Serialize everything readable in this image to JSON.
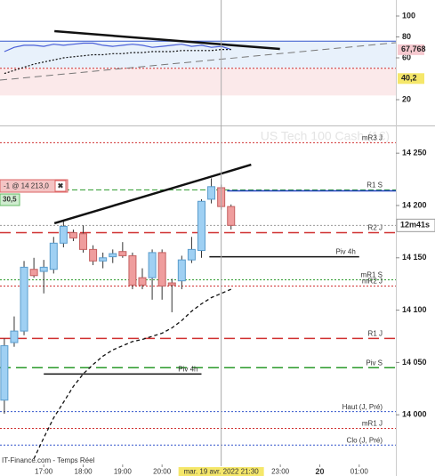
{
  "chart_data": [
    {
      "type": "oscillator",
      "ylim": [
        -3.8,
        115.3
      ],
      "yticks": [
        100,
        80,
        60,
        20
      ],
      "bands": [
        {
          "from": 50,
          "to": 76,
          "color": "#e8f1fb"
        },
        {
          "from": 24,
          "to": 50,
          "color": "#fbe9ea"
        }
      ],
      "levels": [
        {
          "value": 76,
          "color": "#3355cc",
          "style": "solid"
        },
        {
          "value": 50,
          "color": "#d03030",
          "style": "dotted"
        }
      ],
      "markers": [
        {
          "value": 67.768,
          "label": "67,768",
          "color": "#f6c9cf"
        },
        {
          "value": 40.2,
          "label": "40,2",
          "color": "#f5e76a"
        }
      ],
      "x": [
        16,
        16.25,
        16.5,
        16.75,
        17,
        17.25,
        17.5,
        17.75,
        18,
        18.25,
        18.5,
        18.75,
        19,
        19.25,
        19.5,
        19.75,
        20,
        20.25,
        20.5,
        20.75,
        21,
        21.25,
        21.5,
        21.75
      ],
      "series": [
        {
          "name": "osc",
          "color": "#4a5fd8",
          "style": "solid",
          "values": [
            66,
            70,
            72,
            72,
            71,
            73,
            72,
            73,
            74,
            74,
            72,
            71,
            72,
            73,
            72,
            70,
            71,
            72,
            73,
            71,
            72,
            70,
            71,
            68
          ]
        },
        {
          "name": "signal",
          "color": "#111111",
          "style": "dotted",
          "values": [
            45,
            48,
            51,
            54,
            56,
            58,
            60,
            61,
            62,
            63,
            63,
            64,
            64,
            65,
            65,
            66,
            66,
            66,
            67,
            67,
            67,
            67,
            68,
            68
          ]
        }
      ],
      "trendlines": [
        {
          "x": [
            17.27,
            22.99
          ],
          "y": [
            85.5,
            68.5
          ],
          "color": "#111111",
          "width": 2.5,
          "dash": ""
        },
        {
          "x": [
            15.89,
            25.93
          ],
          "y": [
            38.7,
            74.5
          ],
          "color": "#777777",
          "width": 1,
          "dash": "8 5"
        }
      ]
    },
    {
      "type": "candlestick",
      "title": "US Tech 100 Cash (1€)",
      "source": "IT-Finance.com - Temps Réel",
      "xlim": [
        15.89,
        25.93
      ],
      "ylim": [
        13941.5,
        14274.8
      ],
      "yticks": [
        {
          "value": 14250,
          "label": "14 250"
        },
        {
          "value": 14200,
          "label": "14 200"
        },
        {
          "value": 14150,
          "label": "14 150"
        },
        {
          "value": 14100,
          "label": "14 100"
        },
        {
          "value": 14050,
          "label": "14 050"
        },
        {
          "value": 14000,
          "label": "14 000"
        }
      ],
      "xticks": [
        {
          "value": 17,
          "label": "17:00"
        },
        {
          "value": 18,
          "label": "18:00"
        },
        {
          "value": 19,
          "label": "19:00"
        },
        {
          "value": 20,
          "label": "20:00"
        },
        {
          "value": 23,
          "label": "23:00"
        },
        {
          "value": 24,
          "label": "20"
        },
        {
          "value": 25,
          "label": "01:00"
        }
      ],
      "crosshair": {
        "value": 21.5,
        "label": "mar. 19 avr. 2022 21:30"
      },
      "last": {
        "value": 14181,
        "label": "12m41s"
      },
      "order": {
        "label": "-1 @ 14 213,0",
        "pnl": "30,5"
      },
      "x": [
        16,
        16.25,
        16.5,
        16.75,
        17,
        17.25,
        17.5,
        17.75,
        18,
        18.25,
        18.5,
        18.75,
        19,
        19.25,
        19.5,
        19.75,
        20,
        20.25,
        20.5,
        20.75,
        21,
        21.25,
        21.5,
        21.75
      ],
      "open": [
        14014,
        14069,
        14080,
        14139,
        14137,
        14139,
        14164,
        14174,
        14173,
        14158,
        14147,
        14151,
        14156,
        14152,
        14131,
        14131,
        14155,
        14126,
        14128,
        14148,
        14157,
        14206,
        14217,
        14199
      ],
      "close": [
        14066,
        14080,
        14141,
        14133,
        14141,
        14164,
        14180,
        14169,
        14158,
        14147,
        14150,
        14154,
        14152,
        14124,
        14124,
        14155,
        14123,
        14124,
        14148,
        14158,
        14204,
        14218,
        14199,
        14181
      ],
      "high": [
        14073,
        14094,
        14147,
        14150,
        14148,
        14170,
        14185,
        14177,
        14181,
        14162,
        14155,
        14158,
        14165,
        14155,
        14140,
        14158,
        14158,
        14130,
        14152,
        14170,
        14206,
        14226,
        14220,
        14201
      ],
      "low": [
        14001,
        14065,
        14076,
        14131,
        14116,
        14135,
        14160,
        14166,
        14155,
        14143,
        14140,
        14145,
        14150,
        14120,
        14120,
        14110,
        14110,
        14098,
        14120,
        14145,
        14150,
        14202,
        14196,
        14177
      ],
      "up_color": "#9fd0f3",
      "down_color": "#ef9d9d",
      "ma": {
        "color": "#111111",
        "values": [
          null,
          null,
          null,
          13958,
          13978,
          13997,
          14012,
          14027,
          14039,
          14048,
          14056,
          14062,
          14066,
          14070,
          14072,
          14075,
          14078,
          14083,
          14090,
          14099,
          14106,
          14112,
          14116,
          14120
        ]
      },
      "levels": [
        {
          "label": "mR3 J",
          "value": 14260,
          "color": "#d03030",
          "style": "dotted"
        },
        {
          "label": "R1 S",
          "value": 14215,
          "color": "#2a9a2a",
          "style": "dashed"
        },
        {
          "value": 14214,
          "color": "#1f3fbf",
          "style": "solid",
          "from": 21.65
        },
        {
          "label": "R2 J",
          "value": 14174,
          "color": "#d03030",
          "style": "longdash"
        },
        {
          "label": "Piv 4h",
          "value": 14151,
          "color": "#111111",
          "style": "solid",
          "from": 21.2,
          "to": 25.0
        },
        {
          "label": "mR1 S",
          "value": 14129,
          "color": "#2a9a2a",
          "style": "dotted"
        },
        {
          "label": "mR2 J",
          "value": 14123,
          "color": "#d03030",
          "style": "dotted"
        },
        {
          "label": "R1 J",
          "value": 14073,
          "color": "#d03030",
          "style": "longdash"
        },
        {
          "label": "Piv S",
          "value": 14045,
          "color": "#2a9a2a",
          "style": "longdash"
        },
        {
          "label": "Piv 4h",
          "value": 14039,
          "color": "#111111",
          "style": "solid",
          "from": 17.0,
          "to": 21.0
        },
        {
          "label": "Haut (J, Pré)",
          "value": 14003,
          "color": "#3355cc",
          "style": "dotted"
        },
        {
          "label": "mR1 J",
          "value": 13987,
          "color": "#d03030",
          "style": "dotted"
        },
        {
          "label": "Clo (J, Pré)",
          "value": 13971,
          "color": "#3355cc",
          "style": "dotted"
        }
      ],
      "trendlines": [
        {
          "x": [
            17.27,
            22.26
          ],
          "y": [
            14183,
            14239
          ],
          "color": "#111111",
          "width": 2.5,
          "dash": ""
        }
      ]
    }
  ]
}
